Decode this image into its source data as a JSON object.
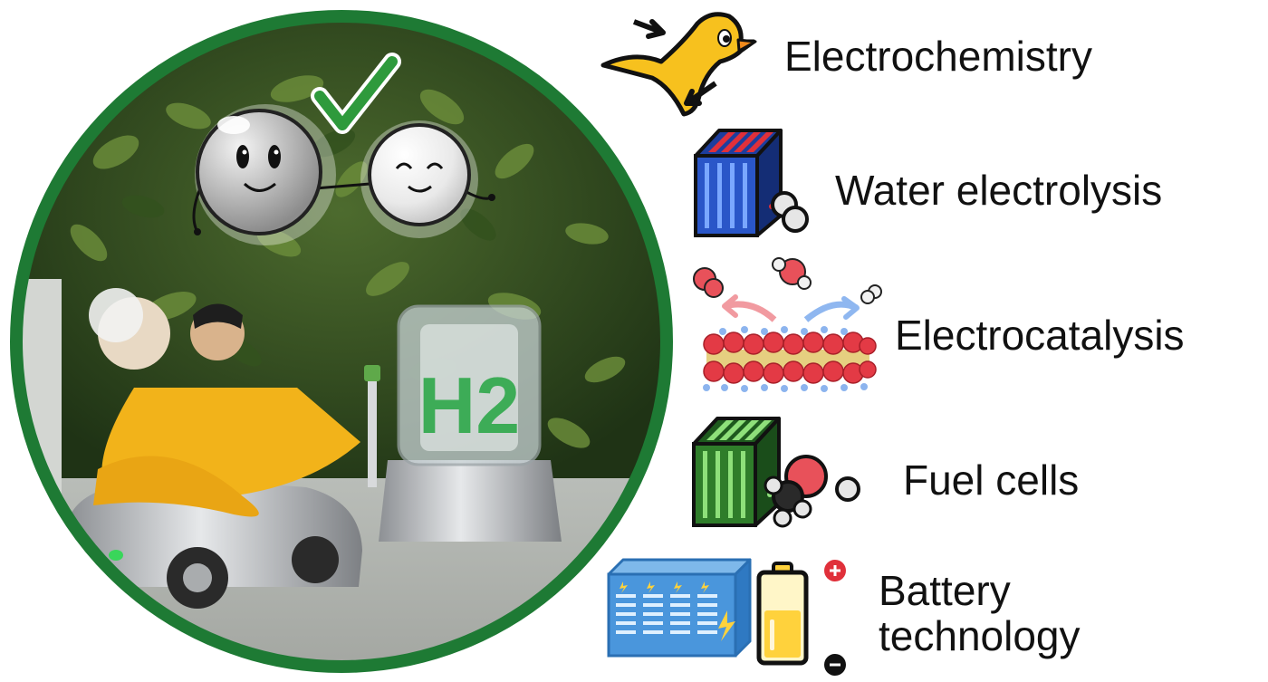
{
  "topics": [
    {
      "label": "Electrochemistry",
      "icon": "duck-icon"
    },
    {
      "label": "Water electrolysis",
      "icon": "electrolyzer-stack-icon"
    },
    {
      "label": "Electrocatalysis",
      "icon": "catalyst-surface-icon"
    },
    {
      "label": "Fuel cells",
      "icon": "fuel-cell-stack-icon"
    },
    {
      "label": "Battery technology",
      "line1": "Battery",
      "line2": "technology",
      "icon": "battery-icon"
    }
  ],
  "photo": {
    "badge_text": "H2",
    "ring_color": "#1e7a34",
    "accent_green": "#2ea84a"
  }
}
